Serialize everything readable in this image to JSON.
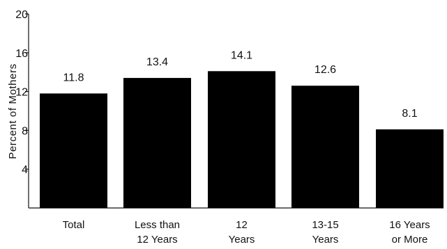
{
  "chart_data": {
    "type": "bar",
    "title": "",
    "xlabel": "",
    "ylabel": "Percent of Mothers",
    "ylim": [
      0,
      20
    ],
    "yticks": [
      4,
      8,
      12,
      16,
      20
    ],
    "categories": [
      [
        "Total"
      ],
      [
        "Less than",
        "12 Years"
      ],
      [
        "12",
        "Years"
      ],
      [
        "13-15",
        "Years"
      ],
      [
        "16 Years",
        "or More"
      ]
    ],
    "values": [
      11.8,
      13.4,
      14.1,
      12.6,
      8.1
    ],
    "value_labels": [
      "11.8",
      "13.4",
      "14.1",
      "12.6",
      "8.1"
    ],
    "bar_color": "#000000",
    "grid": false,
    "legend": "none"
  }
}
